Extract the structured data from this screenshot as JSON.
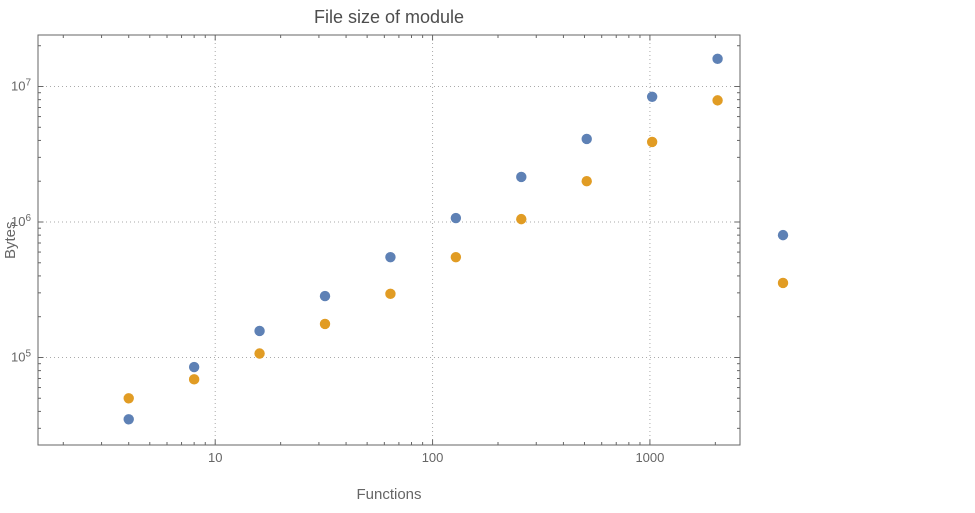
{
  "colors": {
    "background": "#ffffff",
    "title_text": "#4d4d4d",
    "axis_text": "#666666",
    "tick_text": "#666666",
    "frame": "#666666",
    "grid": "#aaaaaa",
    "blue": "#5e81b5",
    "orange": "#e19c24"
  },
  "chart_data": {
    "type": "scatter",
    "title": "File size of module",
    "xlabel": "Functions",
    "ylabel": "Bytes",
    "x_scale": "log",
    "y_scale": "log",
    "grid": true,
    "legend": "none",
    "xlim": [
      1.53,
      2597
    ],
    "ylim": [
      22600,
      24000000
    ],
    "x_ticks": [
      10,
      100,
      1000
    ],
    "x_tick_labels": [
      "10",
      "100",
      "1000"
    ],
    "y_ticks": [
      100000,
      1000000,
      10000000
    ],
    "y_tick_base": "10",
    "y_tick_exponents": [
      5,
      6,
      7
    ],
    "x": [
      4,
      8,
      16,
      32,
      64,
      128,
      256,
      512,
      1024,
      2048,
      4096
    ],
    "series": [
      {
        "name": "blue",
        "color": "#5e81b5",
        "values": [
          35000,
          85000,
          157000,
          284000,
          550000,
          1070000,
          2150000,
          4100000,
          8400000,
          16000000,
          800000
        ]
      },
      {
        "name": "orange",
        "color": "#e19c24",
        "values": [
          50000,
          69000,
          107000,
          177000,
          295000,
          550000,
          1050000,
          2000000,
          3900000,
          7900000,
          355000
        ]
      }
    ]
  }
}
